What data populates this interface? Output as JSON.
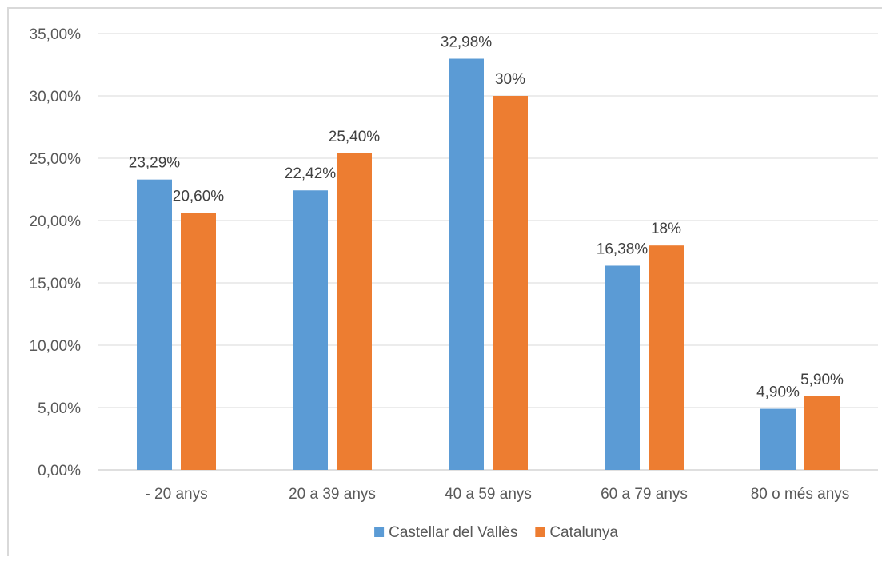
{
  "chart_data": {
    "type": "bar",
    "title": "",
    "xlabel": "",
    "ylabel": "",
    "categories": [
      "- 20 anys",
      "20 a 39 anys",
      "40 a 59 anys",
      "60 a 79 anys",
      "80 o més anys"
    ],
    "series": [
      {
        "name": "Castellar del Vallès",
        "color": "#5b9bd5",
        "values": [
          23.29,
          22.42,
          32.98,
          16.38,
          4.9
        ],
        "labels": [
          "23,29%",
          "22,42%",
          "32,98%",
          "16,38%",
          "4,90%"
        ]
      },
      {
        "name": "Catalunya",
        "color": "#ed7d31",
        "values": [
          20.6,
          25.4,
          30.0,
          18.0,
          5.9
        ],
        "labels": [
          "20,60%",
          "25,40%",
          "30%",
          "18%",
          "5,90%"
        ]
      }
    ],
    "ylim": [
      0,
      35
    ],
    "yticks": [
      0,
      5,
      10,
      15,
      20,
      25,
      30,
      35
    ],
    "ytick_labels": [
      "0,00%",
      "5,00%",
      "10,00%",
      "15,00%",
      "20,00%",
      "25,00%",
      "30,00%",
      "35,00%"
    ],
    "grid": true,
    "legend_position": "bottom",
    "gridline_color": "#d9d9d9",
    "axis_color": "#bfbfbf"
  }
}
